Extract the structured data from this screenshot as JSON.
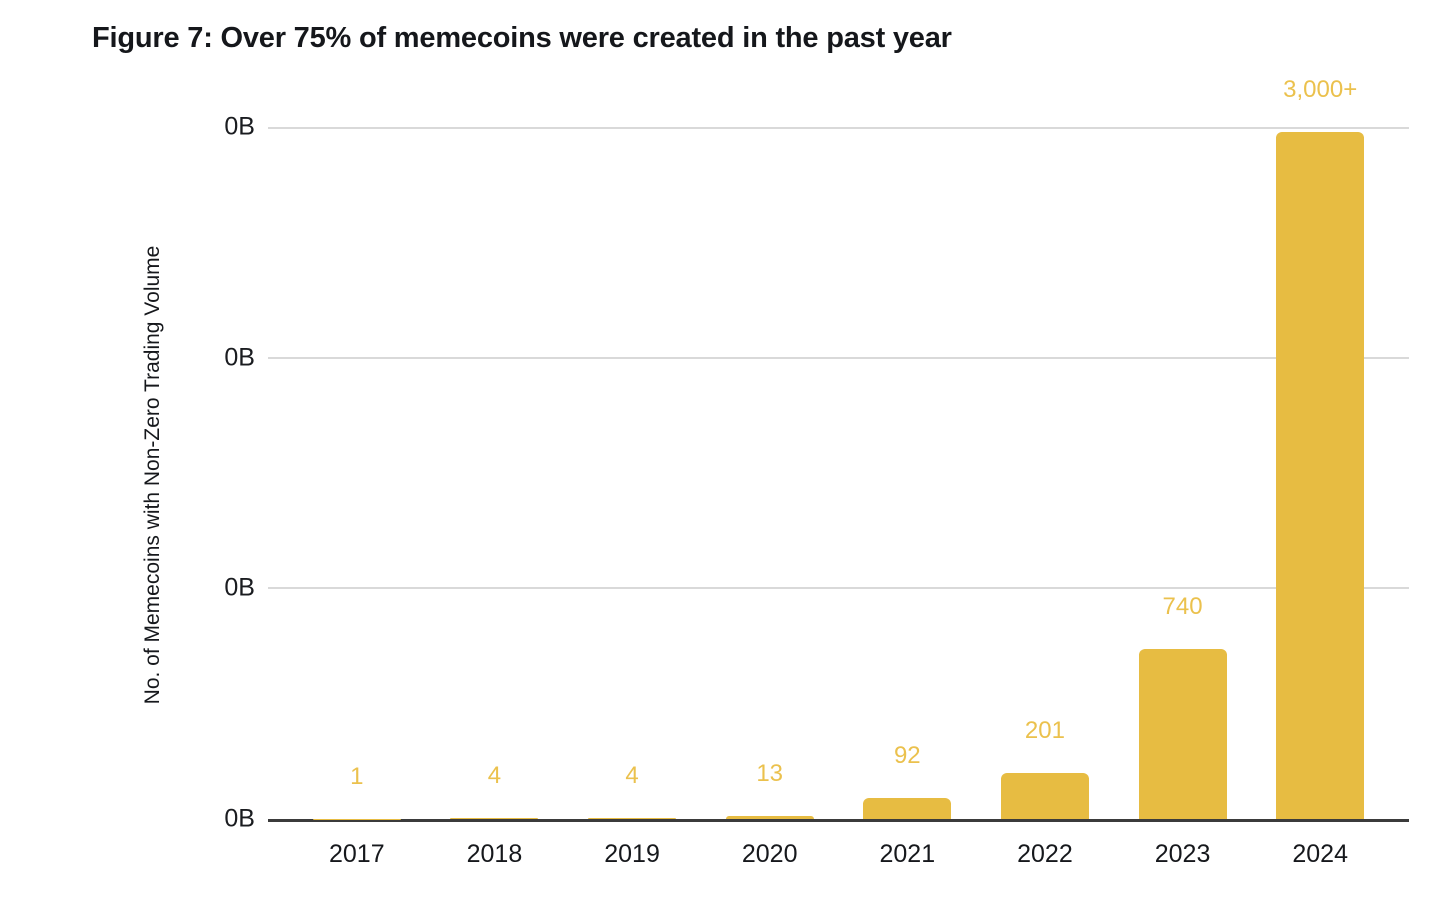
{
  "figure": {
    "title": "Figure 7: Over 75% of memecoins were created in the past year"
  },
  "chart_data": {
    "type": "bar",
    "title": "Figure 7: Over 75% of memecoins were created in the past year",
    "xlabel": "",
    "ylabel": "No. of Memecoins with Non-Zero Trading Volume",
    "categories": [
      "2017",
      "2018",
      "2019",
      "2020",
      "2021",
      "2022",
      "2023",
      "2024"
    ],
    "values": [
      1,
      4,
      4,
      13,
      92,
      201,
      740,
      3000
    ],
    "value_labels": [
      "1",
      "4",
      "4",
      "13",
      "92",
      "201",
      "740",
      "3,000+"
    ],
    "ylim": [
      0,
      3020
    ],
    "yticks": [
      "0B",
      "0B",
      "0B",
      "0B"
    ],
    "grid": "horizontal-only",
    "legend_position": "none",
    "colors": {
      "bar": "#E7BC42",
      "value_label": "#EBC14D",
      "axis_line": "#3B3B3B",
      "gridline": "#D9D9D9",
      "text": "#16181C"
    }
  }
}
